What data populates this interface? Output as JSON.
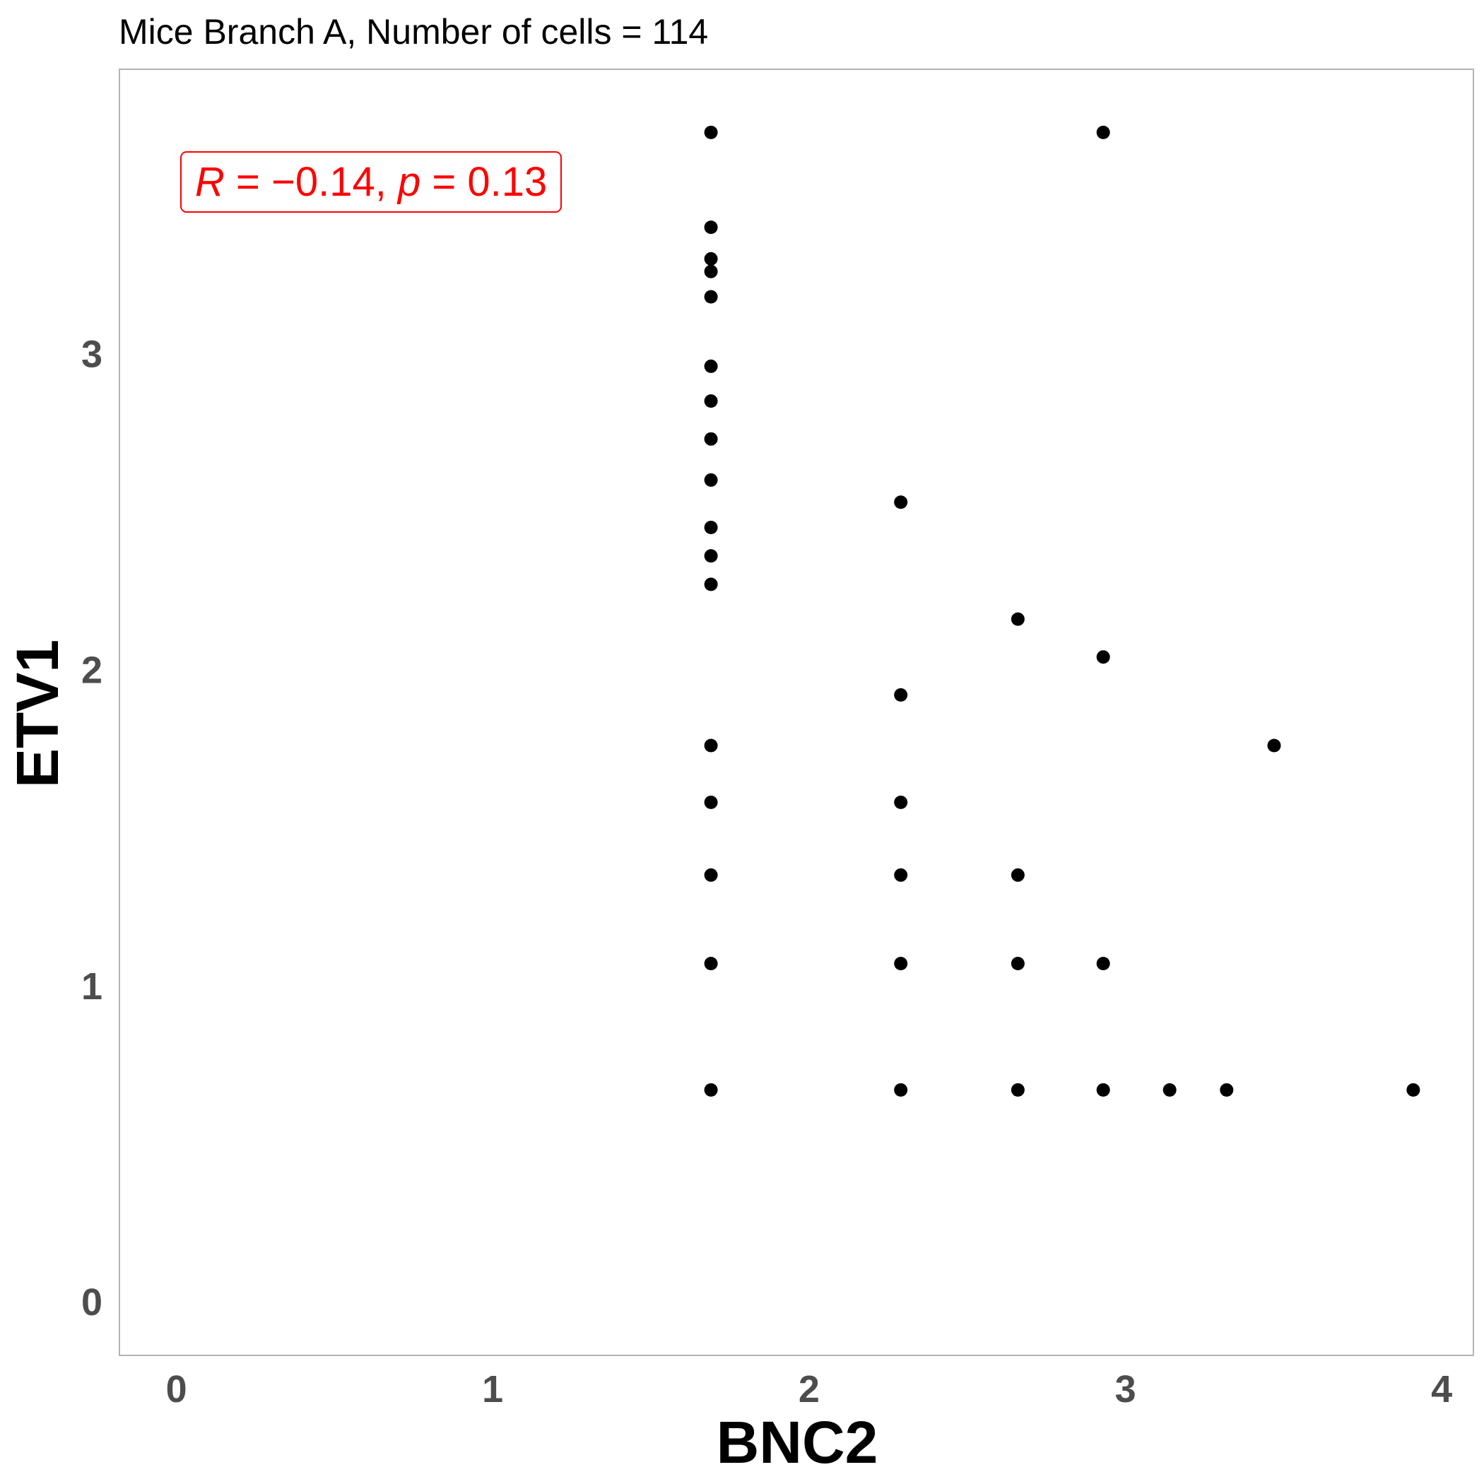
{
  "chart_data": {
    "type": "scatter",
    "title": "Mice Branch A, Number of cells = 114",
    "xlabel": "BNC2",
    "ylabel": "ETV1",
    "xlim": [
      -0.18,
      4.1
    ],
    "ylim": [
      -0.17,
      3.9
    ],
    "xticks": [
      "0",
      "1",
      "2",
      "3",
      "4"
    ],
    "yticks": [
      "0",
      "1",
      "2",
      "3"
    ],
    "grid": false,
    "point_color": "#000000",
    "frame_color": "#b3b3b3",
    "annotation": {
      "r_symbol": "R",
      "r_value": " = −0.14, ",
      "p_symbol": "p",
      "p_value": " = 0.13",
      "color": "#ff0000"
    },
    "points": [
      {
        "x": 1.69,
        "y": 3.7
      },
      {
        "x": 1.69,
        "y": 3.4
      },
      {
        "x": 1.69,
        "y": 3.3
      },
      {
        "x": 1.69,
        "y": 3.26
      },
      {
        "x": 1.69,
        "y": 3.18
      },
      {
        "x": 1.69,
        "y": 2.96
      },
      {
        "x": 1.69,
        "y": 2.85
      },
      {
        "x": 1.69,
        "y": 2.73
      },
      {
        "x": 1.69,
        "y": 2.6
      },
      {
        "x": 1.69,
        "y": 2.45
      },
      {
        "x": 1.69,
        "y": 2.36
      },
      {
        "x": 1.69,
        "y": 2.27
      },
      {
        "x": 1.69,
        "y": 1.76
      },
      {
        "x": 1.69,
        "y": 1.58
      },
      {
        "x": 1.69,
        "y": 1.35
      },
      {
        "x": 1.69,
        "y": 1.07
      },
      {
        "x": 1.69,
        "y": 0.67
      },
      {
        "x": 2.29,
        "y": 2.53
      },
      {
        "x": 2.29,
        "y": 1.92
      },
      {
        "x": 2.29,
        "y": 1.58
      },
      {
        "x": 2.29,
        "y": 1.35
      },
      {
        "x": 2.29,
        "y": 1.07
      },
      {
        "x": 2.29,
        "y": 0.67
      },
      {
        "x": 2.66,
        "y": 2.16
      },
      {
        "x": 2.66,
        "y": 1.35
      },
      {
        "x": 2.66,
        "y": 1.07
      },
      {
        "x": 2.66,
        "y": 0.67
      },
      {
        "x": 2.93,
        "y": 3.7
      },
      {
        "x": 2.93,
        "y": 2.04
      },
      {
        "x": 2.93,
        "y": 1.07
      },
      {
        "x": 2.93,
        "y": 0.67
      },
      {
        "x": 3.14,
        "y": 0.67
      },
      {
        "x": 3.32,
        "y": 0.67
      },
      {
        "x": 3.47,
        "y": 1.76
      },
      {
        "x": 3.91,
        "y": 0.67
      }
    ]
  }
}
